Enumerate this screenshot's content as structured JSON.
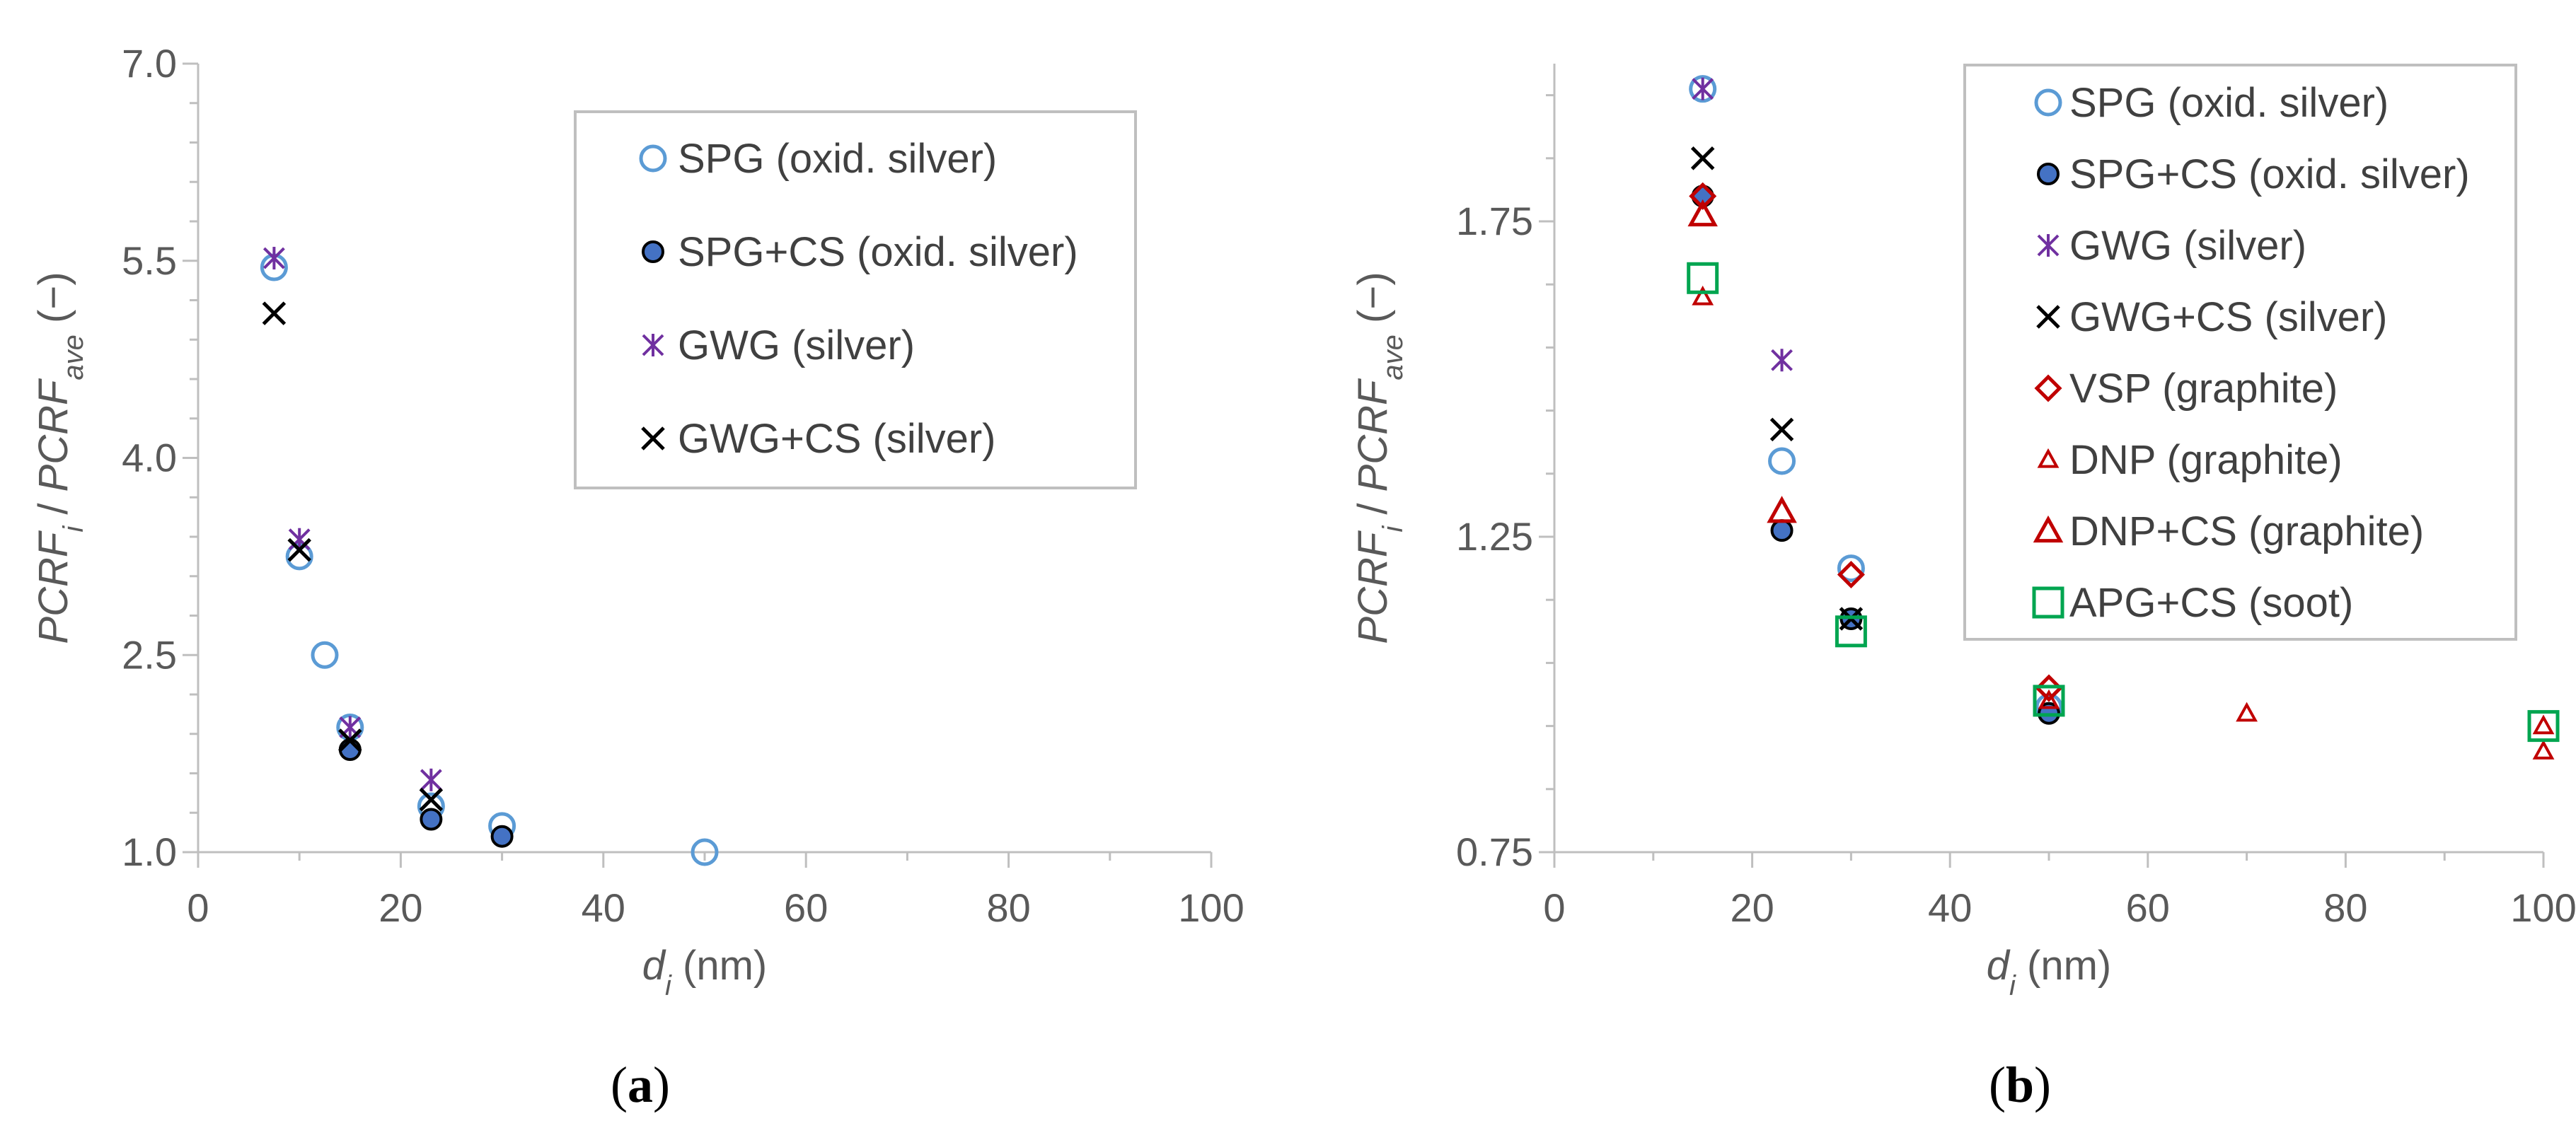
{
  "chart_data": [
    {
      "type": "scatter",
      "panel_label": "(a)",
      "xlabel_var": "d",
      "xlabel_sub": "i",
      "xlabel_unit": " (nm)",
      "ylabel_a": "PCRF",
      "ylabel_a_sub": "i",
      "ylabel_sep": " / ",
      "ylabel_b": "PCRF",
      "ylabel_b_sub": "ave",
      "ylabel_unit": "  (−)",
      "xlim": [
        0,
        100
      ],
      "ylim": [
        1.0,
        7.0
      ],
      "xticks": [
        0,
        20,
        40,
        60,
        80,
        100
      ],
      "xtick_labels": [
        "0",
        "20",
        "40",
        "60",
        "80",
        "100"
      ],
      "yticks": [
        1.0,
        2.5,
        4.0,
        5.5,
        7.0
      ],
      "ytick_labels": [
        "1.0",
        "2.5",
        "4.0",
        "5.5",
        "7.0"
      ],
      "legend_position": "top-right",
      "series": [
        {
          "name": "SPG (oxid. silver)",
          "marker": "circle-open",
          "color": "#5B9BD5",
          "x": [
            7.5,
            10,
            12.5,
            15,
            23,
            30,
            50
          ],
          "y": [
            5.45,
            3.25,
            2.5,
            1.95,
            1.35,
            1.2,
            1.0
          ]
        },
        {
          "name": "SPG+CS (oxid. silver)",
          "marker": "circle-filled",
          "color": "#000000",
          "fill": "#4472C4",
          "x": [
            15,
            23,
            30
          ],
          "y": [
            1.78,
            1.25,
            1.12
          ]
        },
        {
          "name": "GWG (silver)",
          "marker": "asterisk",
          "color": "#7030A0",
          "x": [
            7.5,
            10,
            15,
            23
          ],
          "y": [
            5.52,
            3.38,
            1.95,
            1.55
          ]
        },
        {
          "name": "GWG+CS (silver)",
          "marker": "x",
          "color": "#000000",
          "x": [
            7.5,
            10,
            15,
            23
          ],
          "y": [
            5.1,
            3.3,
            1.85,
            1.4
          ]
        }
      ]
    },
    {
      "type": "scatter",
      "panel_label": "(b)",
      "xlabel_var": "d",
      "xlabel_sub": "i",
      "xlabel_unit": " (nm)",
      "ylabel_a": "PCRF",
      "ylabel_a_sub": "i",
      "ylabel_sep": " / ",
      "ylabel_b": "PCRF",
      "ylabel_b_sub": "ave",
      "ylabel_unit": "  (−)",
      "xlim": [
        0,
        100
      ],
      "ylim": [
        0.75,
        2.0
      ],
      "xticks": [
        0,
        20,
        40,
        60,
        80,
        100
      ],
      "xtick_labels": [
        "0",
        "20",
        "40",
        "60",
        "80",
        "100"
      ],
      "yticks": [
        0.75,
        1.25,
        1.75
      ],
      "ytick_labels": [
        "0.75",
        "1.25",
        "1.75"
      ],
      "legend_position": "top-right",
      "series": [
        {
          "name": "SPG (oxid. silver)",
          "marker": "circle-open",
          "color": "#5B9BD5",
          "x": [
            15,
            23,
            30,
            50
          ],
          "y": [
            1.96,
            1.37,
            1.2,
            0.98
          ]
        },
        {
          "name": "SPG+CS (oxid. silver)",
          "marker": "circle-filled",
          "color": "#000000",
          "fill": "#4472C4",
          "x": [
            15,
            23,
            30,
            50
          ],
          "y": [
            1.79,
            1.26,
            1.12,
            0.97
          ]
        },
        {
          "name": "GWG (silver)",
          "marker": "asterisk",
          "color": "#7030A0",
          "x": [
            15,
            23
          ],
          "y": [
            1.96,
            1.53
          ]
        },
        {
          "name": "GWG+CS (silver)",
          "marker": "x",
          "color": "#000000",
          "x": [
            15,
            23,
            30
          ],
          "y": [
            1.85,
            1.42,
            1.12
          ]
        },
        {
          "name": "VSP (graphite)",
          "marker": "diamond-open",
          "color": "#C00000",
          "x": [
            15,
            30,
            50
          ],
          "y": [
            1.79,
            1.19,
            1.01
          ]
        },
        {
          "name": "DNP (graphite)",
          "marker": "triangle-small",
          "color": "#C00000",
          "x": [
            15,
            50,
            70,
            100,
            100
          ],
          "y": [
            1.63,
            0.99,
            0.97,
            0.95,
            0.91
          ]
        },
        {
          "name": "DNP+CS (graphite)",
          "marker": "triangle-open",
          "color": "#C00000",
          "x": [
            15,
            23
          ],
          "y": [
            1.76,
            1.29
          ]
        },
        {
          "name": "APG+CS (soot)",
          "marker": "square-open",
          "color": "#00A550",
          "x": [
            15,
            30,
            50,
            100
          ],
          "y": [
            1.66,
            1.1,
            0.99,
            0.95
          ]
        }
      ]
    }
  ]
}
